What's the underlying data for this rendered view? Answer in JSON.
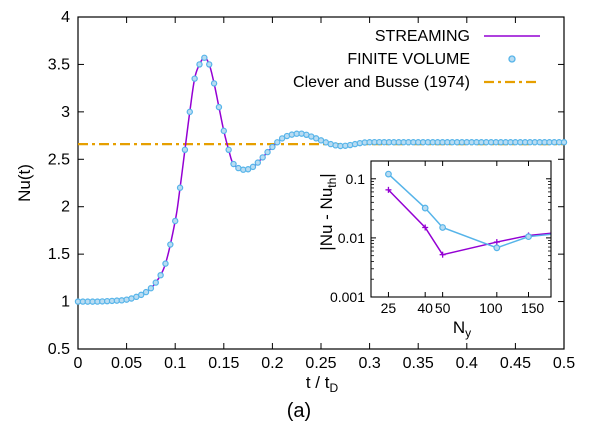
{
  "caption": "(a)",
  "chart_data": [
    {
      "type": "line",
      "xlabel": "t / t",
      "xlabel_sub": "D",
      "ylabel": "Nu(t)",
      "xlim": [
        0,
        0.5
      ],
      "ylim": [
        0.5,
        4
      ],
      "xticks": [
        "0",
        "0.05",
        "0.1",
        "0.15",
        "0.2",
        "0.25",
        "0.3",
        "0.35",
        "0.4",
        "0.45",
        "0.5"
      ],
      "yticks": [
        "0.5",
        "1",
        "1.5",
        "2",
        "2.5",
        "3",
        "3.5",
        "4"
      ],
      "grid": false,
      "legend_position": "top-right",
      "colors": {
        "streaming": "#9400d3",
        "finite_volume": "#56b4e9",
        "clever_busse": "#e69f00"
      },
      "series": [
        {
          "name": "STREAMING",
          "style": "line",
          "x": [
            0,
            0.02,
            0.04,
            0.05,
            0.06,
            0.07,
            0.08,
            0.09,
            0.1,
            0.105,
            0.11,
            0.115,
            0.12,
            0.125,
            0.13,
            0.135,
            0.14,
            0.145,
            0.15,
            0.155,
            0.16,
            0.17,
            0.18,
            0.19,
            0.2,
            0.21,
            0.22,
            0.23,
            0.24,
            0.25,
            0.26,
            0.27,
            0.28,
            0.29,
            0.3,
            0.32,
            0.34,
            0.36,
            0.38,
            0.4,
            0.45,
            0.5
          ],
          "y": [
            1.0,
            1.0,
            1.01,
            1.02,
            1.05,
            1.1,
            1.2,
            1.4,
            1.85,
            2.2,
            2.6,
            3.0,
            3.35,
            3.5,
            3.57,
            3.5,
            3.3,
            3.05,
            2.8,
            2.6,
            2.45,
            2.39,
            2.42,
            2.52,
            2.63,
            2.72,
            2.76,
            2.77,
            2.74,
            2.7,
            2.66,
            2.64,
            2.65,
            2.67,
            2.68,
            2.68,
            2.68,
            2.68,
            2.68,
            2.68,
            2.68,
            2.68
          ]
        },
        {
          "name": "FINITE VOLUME",
          "style": "markers",
          "x": [
            0,
            0.02,
            0.04,
            0.05,
            0.06,
            0.07,
            0.08,
            0.09,
            0.1,
            0.105,
            0.11,
            0.115,
            0.12,
            0.125,
            0.13,
            0.135,
            0.14,
            0.145,
            0.15,
            0.155,
            0.16,
            0.17,
            0.18,
            0.19,
            0.2,
            0.21,
            0.22,
            0.23,
            0.24,
            0.25,
            0.26,
            0.27,
            0.28,
            0.29,
            0.3,
            0.32,
            0.34,
            0.36,
            0.38,
            0.4,
            0.45,
            0.5
          ],
          "y": [
            1.0,
            1.0,
            1.01,
            1.02,
            1.05,
            1.1,
            1.2,
            1.4,
            1.85,
            2.2,
            2.6,
            3.0,
            3.35,
            3.5,
            3.57,
            3.5,
            3.3,
            3.05,
            2.8,
            2.6,
            2.45,
            2.39,
            2.42,
            2.52,
            2.63,
            2.72,
            2.76,
            2.77,
            2.74,
            2.7,
            2.66,
            2.64,
            2.65,
            2.67,
            2.68,
            2.68,
            2.68,
            2.68,
            2.68,
            2.68,
            2.68,
            2.68
          ]
        },
        {
          "name": "Clever and Busse (1974)",
          "style": "dash-dot",
          "x": [
            0,
            0.5
          ],
          "y": [
            2.66,
            2.66
          ]
        }
      ]
    },
    {
      "type": "line",
      "xlabel": "N",
      "xlabel_sub": "y",
      "ylabel": "|Nu - Nu",
      "ylabel_sub": "th",
      "ylabel_tail": "|",
      "xscale": "log",
      "yscale": "log",
      "xlim": [
        20,
        200
      ],
      "ylim": [
        0.001,
        0.2
      ],
      "xticks": [
        25,
        40,
        50,
        100,
        150
      ],
      "xtick_labels": [
        "25",
        "40",
        "50",
        "100",
        "150"
      ],
      "yticks": [
        0.001,
        0.01,
        0.1
      ],
      "ytick_labels": [
        "0.001",
        "0.01",
        "0.1"
      ],
      "series": [
        {
          "name": "STREAMING",
          "x": [
            25,
            40,
            50,
            100,
            150,
            200
          ],
          "y": [
            0.065,
            0.015,
            0.0052,
            0.0085,
            0.011,
            0.012
          ]
        },
        {
          "name": "FINITE VOLUME",
          "x": [
            25,
            40,
            50,
            100,
            150,
            200
          ],
          "y": [
            0.12,
            0.032,
            0.015,
            0.0068,
            0.0105,
            0.0115
          ]
        }
      ]
    }
  ]
}
